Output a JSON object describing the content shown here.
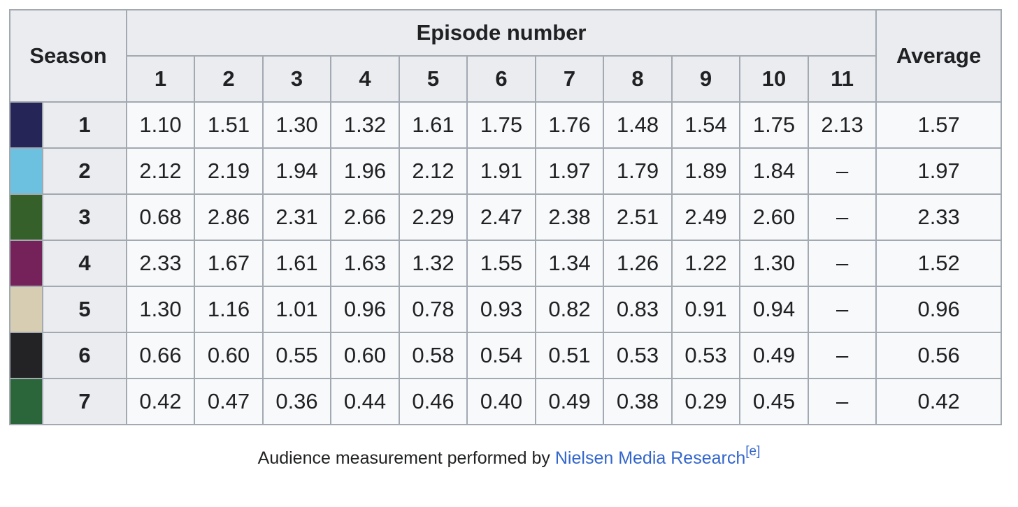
{
  "table": {
    "header_season": "Season",
    "header_episode_number": "Episode number",
    "header_average": "Average",
    "episode_numbers": [
      "1",
      "2",
      "3",
      "4",
      "5",
      "6",
      "7",
      "8",
      "9",
      "10",
      "11"
    ],
    "rows": [
      {
        "season": "1",
        "color": "#252657",
        "values": [
          "1.10",
          "1.51",
          "1.30",
          "1.32",
          "1.61",
          "1.75",
          "1.76",
          "1.48",
          "1.54",
          "1.75",
          "2.13"
        ],
        "average": "1.57"
      },
      {
        "season": "2",
        "color": "#6cc1e0",
        "values": [
          "2.12",
          "2.19",
          "1.94",
          "1.96",
          "2.12",
          "1.91",
          "1.97",
          "1.79",
          "1.89",
          "1.84",
          "–"
        ],
        "average": "1.97"
      },
      {
        "season": "3",
        "color": "#35602a",
        "values": [
          "0.68",
          "2.86",
          "2.31",
          "2.66",
          "2.29",
          "2.47",
          "2.38",
          "2.51",
          "2.49",
          "2.60",
          "–"
        ],
        "average": "2.33"
      },
      {
        "season": "4",
        "color": "#742259",
        "values": [
          "2.33",
          "1.67",
          "1.61",
          "1.63",
          "1.32",
          "1.55",
          "1.34",
          "1.26",
          "1.22",
          "1.30",
          "–"
        ],
        "average": "1.52"
      },
      {
        "season": "5",
        "color": "#d6cdb2",
        "values": [
          "1.30",
          "1.16",
          "1.01",
          "0.96",
          "0.78",
          "0.93",
          "0.82",
          "0.83",
          "0.91",
          "0.94",
          "–"
        ],
        "average": "0.96"
      },
      {
        "season": "6",
        "color": "#232325",
        "values": [
          "0.66",
          "0.60",
          "0.55",
          "0.60",
          "0.58",
          "0.54",
          "0.51",
          "0.53",
          "0.53",
          "0.49",
          "–"
        ],
        "average": "0.56"
      },
      {
        "season": "7",
        "color": "#2b663a",
        "values": [
          "0.42",
          "0.47",
          "0.36",
          "0.44",
          "0.46",
          "0.40",
          "0.49",
          "0.38",
          "0.29",
          "0.45",
          "–"
        ],
        "average": "0.42"
      }
    ]
  },
  "caption": {
    "prefix": "Audience measurement performed by ",
    "link": "Nielsen Media Research",
    "note": "[e]"
  }
}
